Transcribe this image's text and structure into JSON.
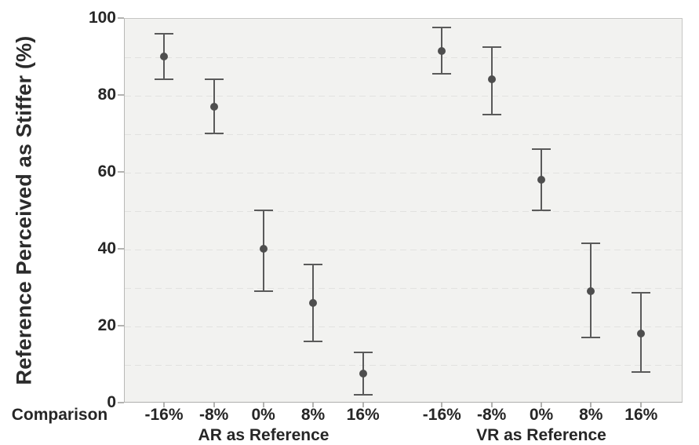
{
  "chart_data": {
    "type": "scatter",
    "subtype": "point-estimate-with-error-bars",
    "title": "",
    "ylabel": "Reference Perceived as Stiffer (%)",
    "xlabel": "Comparison",
    "ylim": [
      0,
      100
    ],
    "yticks": [
      0,
      20,
      40,
      60,
      80,
      100
    ],
    "gridlines": {
      "every": 10,
      "style": "dashed",
      "on": true
    },
    "legend_position": "none",
    "groups": [
      {
        "label": "AR as Reference",
        "categories": [
          "-16%",
          "-8%",
          "0%",
          "8%",
          "16%"
        ],
        "points": [
          {
            "category": "-16%",
            "mean": 90,
            "ci_low": 84,
            "ci_high": 96
          },
          {
            "category": "-8%",
            "mean": 77,
            "ci_low": 70,
            "ci_high": 84
          },
          {
            "category": "0%",
            "mean": 40,
            "ci_low": 29,
            "ci_high": 50
          },
          {
            "category": "8%",
            "mean": 26,
            "ci_low": 16,
            "ci_high": 36
          },
          {
            "category": "16%",
            "mean": 7.5,
            "ci_low": 2,
            "ci_high": 13
          }
        ]
      },
      {
        "label": "VR as Reference",
        "categories": [
          "-16%",
          "-8%",
          "0%",
          "8%",
          "16%"
        ],
        "points": [
          {
            "category": "-16%",
            "mean": 91.5,
            "ci_low": 85.5,
            "ci_high": 97.5
          },
          {
            "category": "-8%",
            "mean": 84,
            "ci_low": 75,
            "ci_high": 92.5
          },
          {
            "category": "0%",
            "mean": 58,
            "ci_low": 50,
            "ci_high": 66
          },
          {
            "category": "8%",
            "mean": 29,
            "ci_low": 17,
            "ci_high": 41.5
          },
          {
            "category": "16%",
            "mean": 18,
            "ci_low": 8,
            "ci_high": 28.5
          }
        ]
      }
    ],
    "colors": {
      "point": "#4e4e4e",
      "error_bar": "#5a5a5a",
      "grid": "#e2e2e0",
      "plot_background": "#f2f2f0",
      "axis": "#b2b2b0",
      "text": "#262626"
    }
  }
}
